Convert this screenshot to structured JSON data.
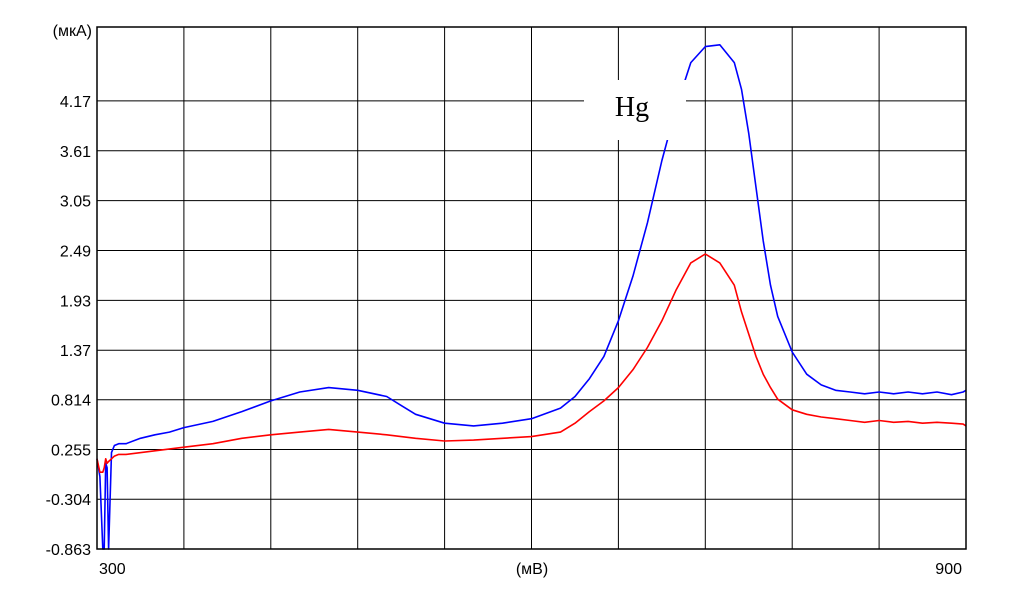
{
  "chart_data": {
    "type": "line",
    "title": "",
    "ylabel": "(мкА)",
    "xlabel": "(мВ)",
    "x_tick_labels": [
      "300",
      "900"
    ],
    "y_tick_labels": [
      "4.17",
      "3.61",
      "3.05",
      "2.49",
      "1.93",
      "1.37",
      "0.814",
      "0.255",
      "-0.304",
      "-0.863"
    ],
    "xlim": [
      300,
      900
    ],
    "ylim": [
      -0.863,
      5.0
    ],
    "grid": true,
    "annotations": [
      {
        "text": "Hg",
        "x": 650,
        "y": 4.3
      }
    ],
    "series": [
      {
        "color": "#0000ff",
        "x": [
          300,
          302,
          304,
          305,
          306,
          307,
          308,
          310,
          312,
          315,
          320,
          330,
          340,
          350,
          360,
          380,
          400,
          420,
          440,
          460,
          480,
          500,
          510,
          520,
          540,
          560,
          580,
          600,
          620,
          630,
          640,
          650,
          660,
          670,
          680,
          690,
          700,
          710,
          720,
          730,
          740,
          745,
          750,
          755,
          760,
          765,
          770,
          780,
          790,
          800,
          810,
          820,
          830,
          840,
          850,
          860,
          870,
          880,
          890,
          898,
          900
        ],
        "y": [
          0.15,
          -0.05,
          -0.863,
          -0.863,
          0.1,
          0.05,
          -0.863,
          0.22,
          0.3,
          0.32,
          0.32,
          0.38,
          0.42,
          0.45,
          0.5,
          0.57,
          0.68,
          0.8,
          0.9,
          0.95,
          0.92,
          0.85,
          0.75,
          0.65,
          0.55,
          0.52,
          0.55,
          0.6,
          0.72,
          0.85,
          1.05,
          1.3,
          1.7,
          2.2,
          2.8,
          3.5,
          4.1,
          4.6,
          4.78,
          4.8,
          4.6,
          4.3,
          3.8,
          3.2,
          2.6,
          2.1,
          1.75,
          1.35,
          1.1,
          0.98,
          0.92,
          0.9,
          0.88,
          0.9,
          0.88,
          0.9,
          0.88,
          0.9,
          0.87,
          0.9,
          0.92
        ]
      },
      {
        "color": "#ff0000",
        "x": [
          300,
          302,
          304,
          305,
          306,
          307,
          308,
          310,
          312,
          315,
          320,
          340,
          360,
          380,
          400,
          420,
          440,
          460,
          480,
          500,
          510,
          520,
          540,
          560,
          580,
          600,
          620,
          630,
          640,
          650,
          660,
          670,
          680,
          690,
          700,
          710,
          720,
          730,
          740,
          745,
          750,
          755,
          760,
          765,
          770,
          780,
          790,
          800,
          810,
          820,
          830,
          840,
          850,
          860,
          870,
          880,
          890,
          898,
          900
        ],
        "y": [
          0.15,
          0.0,
          0.0,
          0.05,
          0.15,
          0.1,
          0.12,
          0.15,
          0.18,
          0.2,
          0.2,
          0.24,
          0.28,
          0.32,
          0.38,
          0.42,
          0.45,
          0.48,
          0.45,
          0.42,
          0.4,
          0.38,
          0.35,
          0.36,
          0.38,
          0.4,
          0.45,
          0.55,
          0.68,
          0.8,
          0.95,
          1.15,
          1.4,
          1.7,
          2.05,
          2.35,
          2.45,
          2.35,
          2.1,
          1.8,
          1.55,
          1.3,
          1.1,
          0.95,
          0.82,
          0.7,
          0.65,
          0.62,
          0.6,
          0.58,
          0.56,
          0.58,
          0.56,
          0.57,
          0.55,
          0.56,
          0.55,
          0.54,
          0.52
        ]
      }
    ]
  }
}
